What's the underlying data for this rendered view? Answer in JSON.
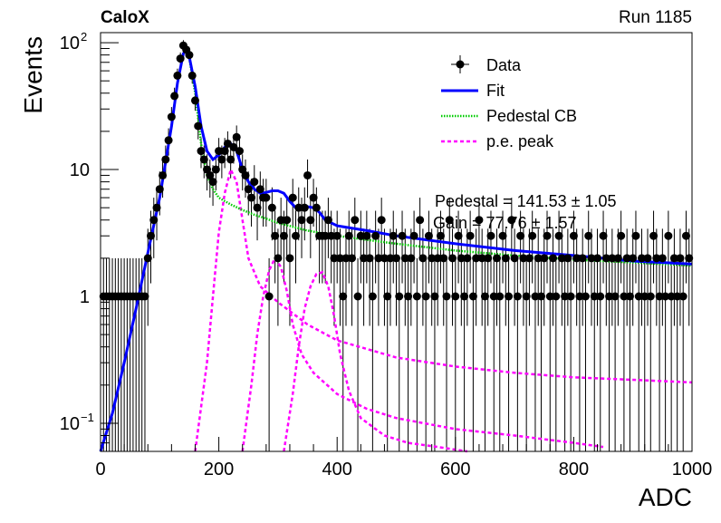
{
  "header": {
    "experiment": "CaloX",
    "run": "Run 1185"
  },
  "colors": {
    "data": "#000000",
    "fit": "#0000ff",
    "pedestal": "#00cc00",
    "pe_peak": "#ff00ff"
  },
  "chart_data": {
    "type": "scatter",
    "xlabel": "ADC",
    "ylabel": "Events",
    "xlim": [
      0,
      1000
    ],
    "ylim": [
      0.06,
      120
    ],
    "ylog": true,
    "x_ticks": [
      {
        "v": 0,
        "label": "0"
      },
      {
        "v": 200,
        "label": "200"
      },
      {
        "v": 400,
        "label": "400"
      },
      {
        "v": 600,
        "label": "600"
      },
      {
        "v": 800,
        "label": "800"
      },
      {
        "v": 1000,
        "label": "1000"
      }
    ],
    "y_ticks": [
      {
        "v": 0.1,
        "label": "10",
        "exp": "−1"
      },
      {
        "v": 1,
        "label": "1",
        "exp": ""
      },
      {
        "v": 10,
        "label": "10",
        "exp": ""
      },
      {
        "v": 100,
        "label": "10",
        "exp": "2"
      }
    ],
    "legend": {
      "position": "top-right",
      "entries": [
        {
          "key": "data",
          "label": "Data",
          "style": "marker"
        },
        {
          "key": "fit",
          "label": "Fit",
          "style": "solid"
        },
        {
          "key": "pedestal",
          "label": "Pedestal CB",
          "style": "dotted"
        },
        {
          "key": "pe_peak",
          "label": "p.e. peak",
          "style": "dashed"
        }
      ]
    },
    "annotations": [
      "Pedestal = 141.53 ± 1.05",
      "Gain = 77.76 ± 1.57"
    ],
    "data_points": [
      [
        5,
        1
      ],
      [
        10,
        1
      ],
      [
        15,
        1
      ],
      [
        20,
        1
      ],
      [
        25,
        1
      ],
      [
        30,
        1
      ],
      [
        35,
        1
      ],
      [
        40,
        1
      ],
      [
        45,
        1
      ],
      [
        50,
        1
      ],
      [
        55,
        1
      ],
      [
        60,
        1
      ],
      [
        65,
        1
      ],
      [
        70,
        1
      ],
      [
        75,
        1
      ],
      [
        80,
        2
      ],
      [
        85,
        3
      ],
      [
        90,
        4
      ],
      [
        95,
        5
      ],
      [
        100,
        7
      ],
      [
        105,
        9
      ],
      [
        110,
        12
      ],
      [
        115,
        17
      ],
      [
        120,
        26
      ],
      [
        125,
        38
      ],
      [
        130,
        55
      ],
      [
        135,
        75
      ],
      [
        140,
        95
      ],
      [
        145,
        88
      ],
      [
        150,
        80
      ],
      [
        155,
        55
      ],
      [
        160,
        35
      ],
      [
        165,
        22
      ],
      [
        170,
        14
      ],
      [
        175,
        12
      ],
      [
        180,
        10
      ],
      [
        185,
        9
      ],
      [
        190,
        8
      ],
      [
        195,
        10
      ],
      [
        200,
        14
      ],
      [
        205,
        12
      ],
      [
        210,
        14
      ],
      [
        215,
        16
      ],
      [
        220,
        12
      ],
      [
        225,
        15
      ],
      [
        230,
        18
      ],
      [
        235,
        14
      ],
      [
        240,
        10
      ],
      [
        245,
        9
      ],
      [
        250,
        7
      ],
      [
        255,
        6
      ],
      [
        260,
        8
      ],
      [
        265,
        5
      ],
      [
        270,
        7
      ],
      [
        275,
        6
      ],
      [
        280,
        6
      ],
      [
        285,
        1
      ],
      [
        290,
        5
      ],
      [
        295,
        3
      ],
      [
        300,
        2
      ],
      [
        305,
        4
      ],
      [
        310,
        3
      ],
      [
        315,
        4
      ],
      [
        320,
        2
      ],
      [
        325,
        6
      ],
      [
        330,
        3
      ],
      [
        335,
        5
      ],
      [
        340,
        4
      ],
      [
        345,
        5
      ],
      [
        350,
        9
      ],
      [
        355,
        4
      ],
      [
        360,
        6
      ],
      [
        365,
        5
      ],
      [
        370,
        3
      ],
      [
        375,
        3
      ],
      [
        380,
        3
      ],
      [
        385,
        4
      ],
      [
        390,
        3
      ],
      [
        395,
        2
      ],
      [
        400,
        3
      ],
      [
        405,
        2
      ],
      [
        410,
        1
      ],
      [
        415,
        2
      ],
      [
        420,
        3
      ],
      [
        425,
        2
      ],
      [
        430,
        4
      ],
      [
        435,
        1
      ],
      [
        440,
        3
      ],
      [
        445,
        2
      ],
      [
        450,
        3
      ],
      [
        455,
        2
      ],
      [
        460,
        1
      ],
      [
        465,
        3
      ],
      [
        470,
        2
      ],
      [
        475,
        4
      ],
      [
        480,
        2
      ],
      [
        485,
        1
      ],
      [
        490,
        2
      ],
      [
        495,
        3
      ],
      [
        500,
        2
      ],
      [
        505,
        1
      ],
      [
        510,
        3
      ],
      [
        515,
        2
      ],
      [
        520,
        1
      ],
      [
        525,
        2
      ],
      [
        530,
        3
      ],
      [
        535,
        1
      ],
      [
        540,
        4
      ],
      [
        545,
        2
      ],
      [
        550,
        1
      ],
      [
        555,
        3
      ],
      [
        560,
        2
      ],
      [
        565,
        1
      ],
      [
        570,
        2
      ],
      [
        575,
        3
      ],
      [
        580,
        2
      ],
      [
        585,
        1
      ],
      [
        590,
        4
      ],
      [
        595,
        2
      ],
      [
        600,
        1
      ],
      [
        605,
        3
      ],
      [
        610,
        2
      ],
      [
        615,
        1
      ],
      [
        620,
        2
      ],
      [
        625,
        3
      ],
      [
        630,
        1
      ],
      [
        635,
        2
      ],
      [
        640,
        4
      ],
      [
        645,
        2
      ],
      [
        650,
        1
      ],
      [
        655,
        2
      ],
      [
        660,
        3
      ],
      [
        665,
        1
      ],
      [
        670,
        2
      ],
      [
        675,
        1
      ],
      [
        680,
        3
      ],
      [
        685,
        2
      ],
      [
        690,
        1
      ],
      [
        695,
        4
      ],
      [
        700,
        2
      ],
      [
        705,
        1
      ],
      [
        710,
        3
      ],
      [
        715,
        2
      ],
      [
        720,
        1
      ],
      [
        725,
        2
      ],
      [
        730,
        3
      ],
      [
        735,
        1
      ],
      [
        740,
        2
      ],
      [
        745,
        1
      ],
      [
        750,
        2
      ],
      [
        755,
        3
      ],
      [
        760,
        1
      ],
      [
        765,
        2
      ],
      [
        770,
        1
      ],
      [
        775,
        3
      ],
      [
        780,
        2
      ],
      [
        785,
        1
      ],
      [
        790,
        2
      ],
      [
        795,
        1
      ],
      [
        800,
        3
      ],
      [
        805,
        2
      ],
      [
        810,
        1
      ],
      [
        815,
        2
      ],
      [
        820,
        1
      ],
      [
        825,
        3
      ],
      [
        830,
        2
      ],
      [
        835,
        1
      ],
      [
        840,
        2
      ],
      [
        845,
        1
      ],
      [
        850,
        3
      ],
      [
        855,
        2
      ],
      [
        860,
        1
      ],
      [
        865,
        2
      ],
      [
        870,
        1
      ],
      [
        875,
        2
      ],
      [
        880,
        3
      ],
      [
        885,
        1
      ],
      [
        890,
        2
      ],
      [
        895,
        1
      ],
      [
        900,
        2
      ],
      [
        905,
        3
      ],
      [
        910,
        1
      ],
      [
        915,
        2
      ],
      [
        920,
        1
      ],
      [
        925,
        2
      ],
      [
        930,
        1
      ],
      [
        935,
        3
      ],
      [
        940,
        2
      ],
      [
        945,
        1
      ],
      [
        950,
        2
      ],
      [
        955,
        1
      ],
      [
        960,
        3
      ],
      [
        965,
        1
      ],
      [
        970,
        2
      ],
      [
        975,
        1
      ],
      [
        980,
        2
      ],
      [
        985,
        1
      ],
      [
        990,
        3
      ],
      [
        995,
        2
      ]
    ],
    "curves": {
      "fit": [
        [
          0,
          0.06
        ],
        [
          20,
          0.12
        ],
        [
          40,
          0.3
        ],
        [
          60,
          0.8
        ],
        [
          80,
          2.2
        ],
        [
          100,
          6
        ],
        [
          120,
          22
        ],
        [
          130,
          48
        ],
        [
          140,
          82
        ],
        [
          145,
          88
        ],
        [
          150,
          78
        ],
        [
          160,
          45
        ],
        [
          170,
          22
        ],
        [
          180,
          14
        ],
        [
          190,
          12
        ],
        [
          200,
          13
        ],
        [
          210,
          15
        ],
        [
          220,
          16
        ],
        [
          230,
          14
        ],
        [
          240,
          10
        ],
        [
          250,
          8
        ],
        [
          260,
          7
        ],
        [
          270,
          6.5
        ],
        [
          280,
          6.6
        ],
        [
          290,
          6.8
        ],
        [
          300,
          6.8
        ],
        [
          310,
          6.5
        ],
        [
          320,
          5.6
        ],
        [
          330,
          5
        ],
        [
          340,
          5
        ],
        [
          350,
          5.1
        ],
        [
          360,
          5
        ],
        [
          370,
          4.6
        ],
        [
          380,
          4
        ],
        [
          400,
          3.6
        ],
        [
          450,
          3.3
        ],
        [
          500,
          3
        ],
        [
          600,
          2.6
        ],
        [
          700,
          2.3
        ],
        [
          800,
          2.1
        ],
        [
          900,
          1.9
        ],
        [
          1000,
          1.8
        ]
      ],
      "pedestal": [
        [
          0,
          0.06
        ],
        [
          20,
          0.12
        ],
        [
          40,
          0.3
        ],
        [
          60,
          0.8
        ],
        [
          80,
          2.2
        ],
        [
          100,
          6
        ],
        [
          120,
          22
        ],
        [
          130,
          48
        ],
        [
          140,
          82
        ],
        [
          145,
          86
        ],
        [
          150,
          76
        ],
        [
          160,
          40
        ],
        [
          170,
          16
        ],
        [
          180,
          9
        ],
        [
          190,
          7
        ],
        [
          200,
          6
        ],
        [
          220,
          5.3
        ],
        [
          240,
          4.8
        ],
        [
          260,
          4.4
        ],
        [
          280,
          4.1
        ],
        [
          300,
          3.8
        ],
        [
          350,
          3.3
        ],
        [
          400,
          3
        ],
        [
          500,
          2.6
        ],
        [
          600,
          2.3
        ],
        [
          700,
          2.1
        ],
        [
          800,
          1.95
        ],
        [
          900,
          1.85
        ],
        [
          1000,
          1.75
        ]
      ],
      "pe_peaks": [
        [
          [
            160,
            0.06
          ],
          [
            180,
            0.3
          ],
          [
            190,
            1
          ],
          [
            200,
            3.2
          ],
          [
            210,
            6.5
          ],
          [
            220,
            10
          ],
          [
            230,
            8
          ],
          [
            240,
            4
          ],
          [
            250,
            2
          ],
          [
            270,
            1.2
          ],
          [
            300,
            0.9
          ],
          [
            350,
            0.6
          ],
          [
            400,
            0.45
          ],
          [
            500,
            0.33
          ],
          [
            600,
            0.28
          ],
          [
            700,
            0.25
          ],
          [
            800,
            0.23
          ],
          [
            900,
            0.22
          ],
          [
            1000,
            0.21
          ]
        ],
        [
          [
            240,
            0.06
          ],
          [
            255,
            0.2
          ],
          [
            265,
            0.5
          ],
          [
            275,
            1
          ],
          [
            285,
            1.6
          ],
          [
            295,
            2
          ],
          [
            305,
            1.7
          ],
          [
            315,
            1.1
          ],
          [
            325,
            0.6
          ],
          [
            340,
            0.35
          ],
          [
            360,
            0.25
          ],
          [
            400,
            0.17
          ],
          [
            450,
            0.13
          ],
          [
            500,
            0.11
          ],
          [
            600,
            0.09
          ],
          [
            700,
            0.08
          ],
          [
            800,
            0.07
          ],
          [
            850,
            0.065
          ]
        ],
        [
          [
            310,
            0.06
          ],
          [
            325,
            0.17
          ],
          [
            335,
            0.4
          ],
          [
            345,
            0.8
          ],
          [
            355,
            1.2
          ],
          [
            365,
            1.5
          ],
          [
            375,
            1.55
          ],
          [
            385,
            1.2
          ],
          [
            395,
            0.7
          ],
          [
            405,
            0.35
          ],
          [
            420,
            0.18
          ],
          [
            440,
            0.11
          ],
          [
            480,
            0.08
          ],
          [
            520,
            0.07
          ],
          [
            570,
            0.065
          ],
          [
            620,
            0.06
          ]
        ]
      ]
    }
  }
}
